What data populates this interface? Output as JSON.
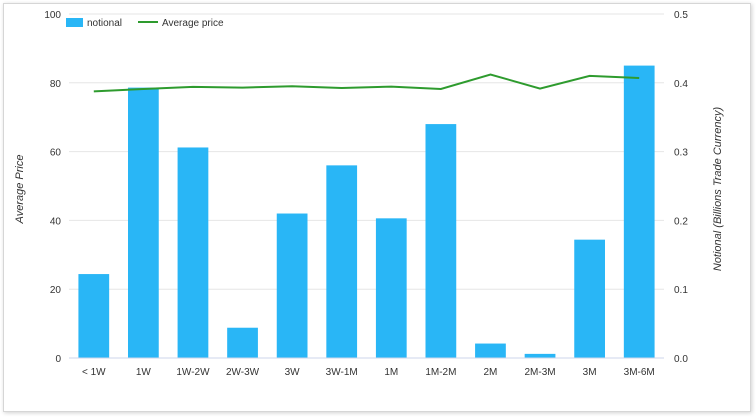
{
  "chart_data": {
    "type": "bar+line",
    "categories": [
      "< 1W",
      "1W",
      "1W-2W",
      "2W-3W",
      "3W",
      "3W-1M",
      "1M",
      "1M-2M",
      "2M",
      "2M-3M",
      "3M",
      "3M-6M"
    ],
    "series": [
      {
        "name": "notional",
        "type": "bar",
        "axis": "right",
        "color": "#29b6f6",
        "values": [
          0.122,
          0.393,
          0.306,
          0.044,
          0.21,
          0.28,
          0.203,
          0.34,
          0.021,
          0.006,
          0.172,
          0.425
        ]
      },
      {
        "name": "Average price",
        "type": "line",
        "axis": "left",
        "color": "#2e9b2e",
        "values": [
          77.5,
          78.2,
          78.8,
          78.6,
          79.0,
          78.5,
          78.9,
          78.2,
          82.4,
          78.3,
          82.0,
          81.4
        ]
      }
    ],
    "left_axis": {
      "label": "Average Price",
      "min": 0,
      "max": 100,
      "ticks": [
        "0",
        "20",
        "40",
        "60",
        "80",
        "100"
      ]
    },
    "right_axis": {
      "label": "Notional (Billions Trade Currency)",
      "min": 0,
      "max": 0.5,
      "ticks": [
        "0.0",
        "0.1",
        "0.2",
        "0.3",
        "0.4",
        "0.5"
      ]
    },
    "grid": true,
    "legend": {
      "placement": "top-left",
      "items": [
        "notional",
        "Average price"
      ]
    }
  }
}
